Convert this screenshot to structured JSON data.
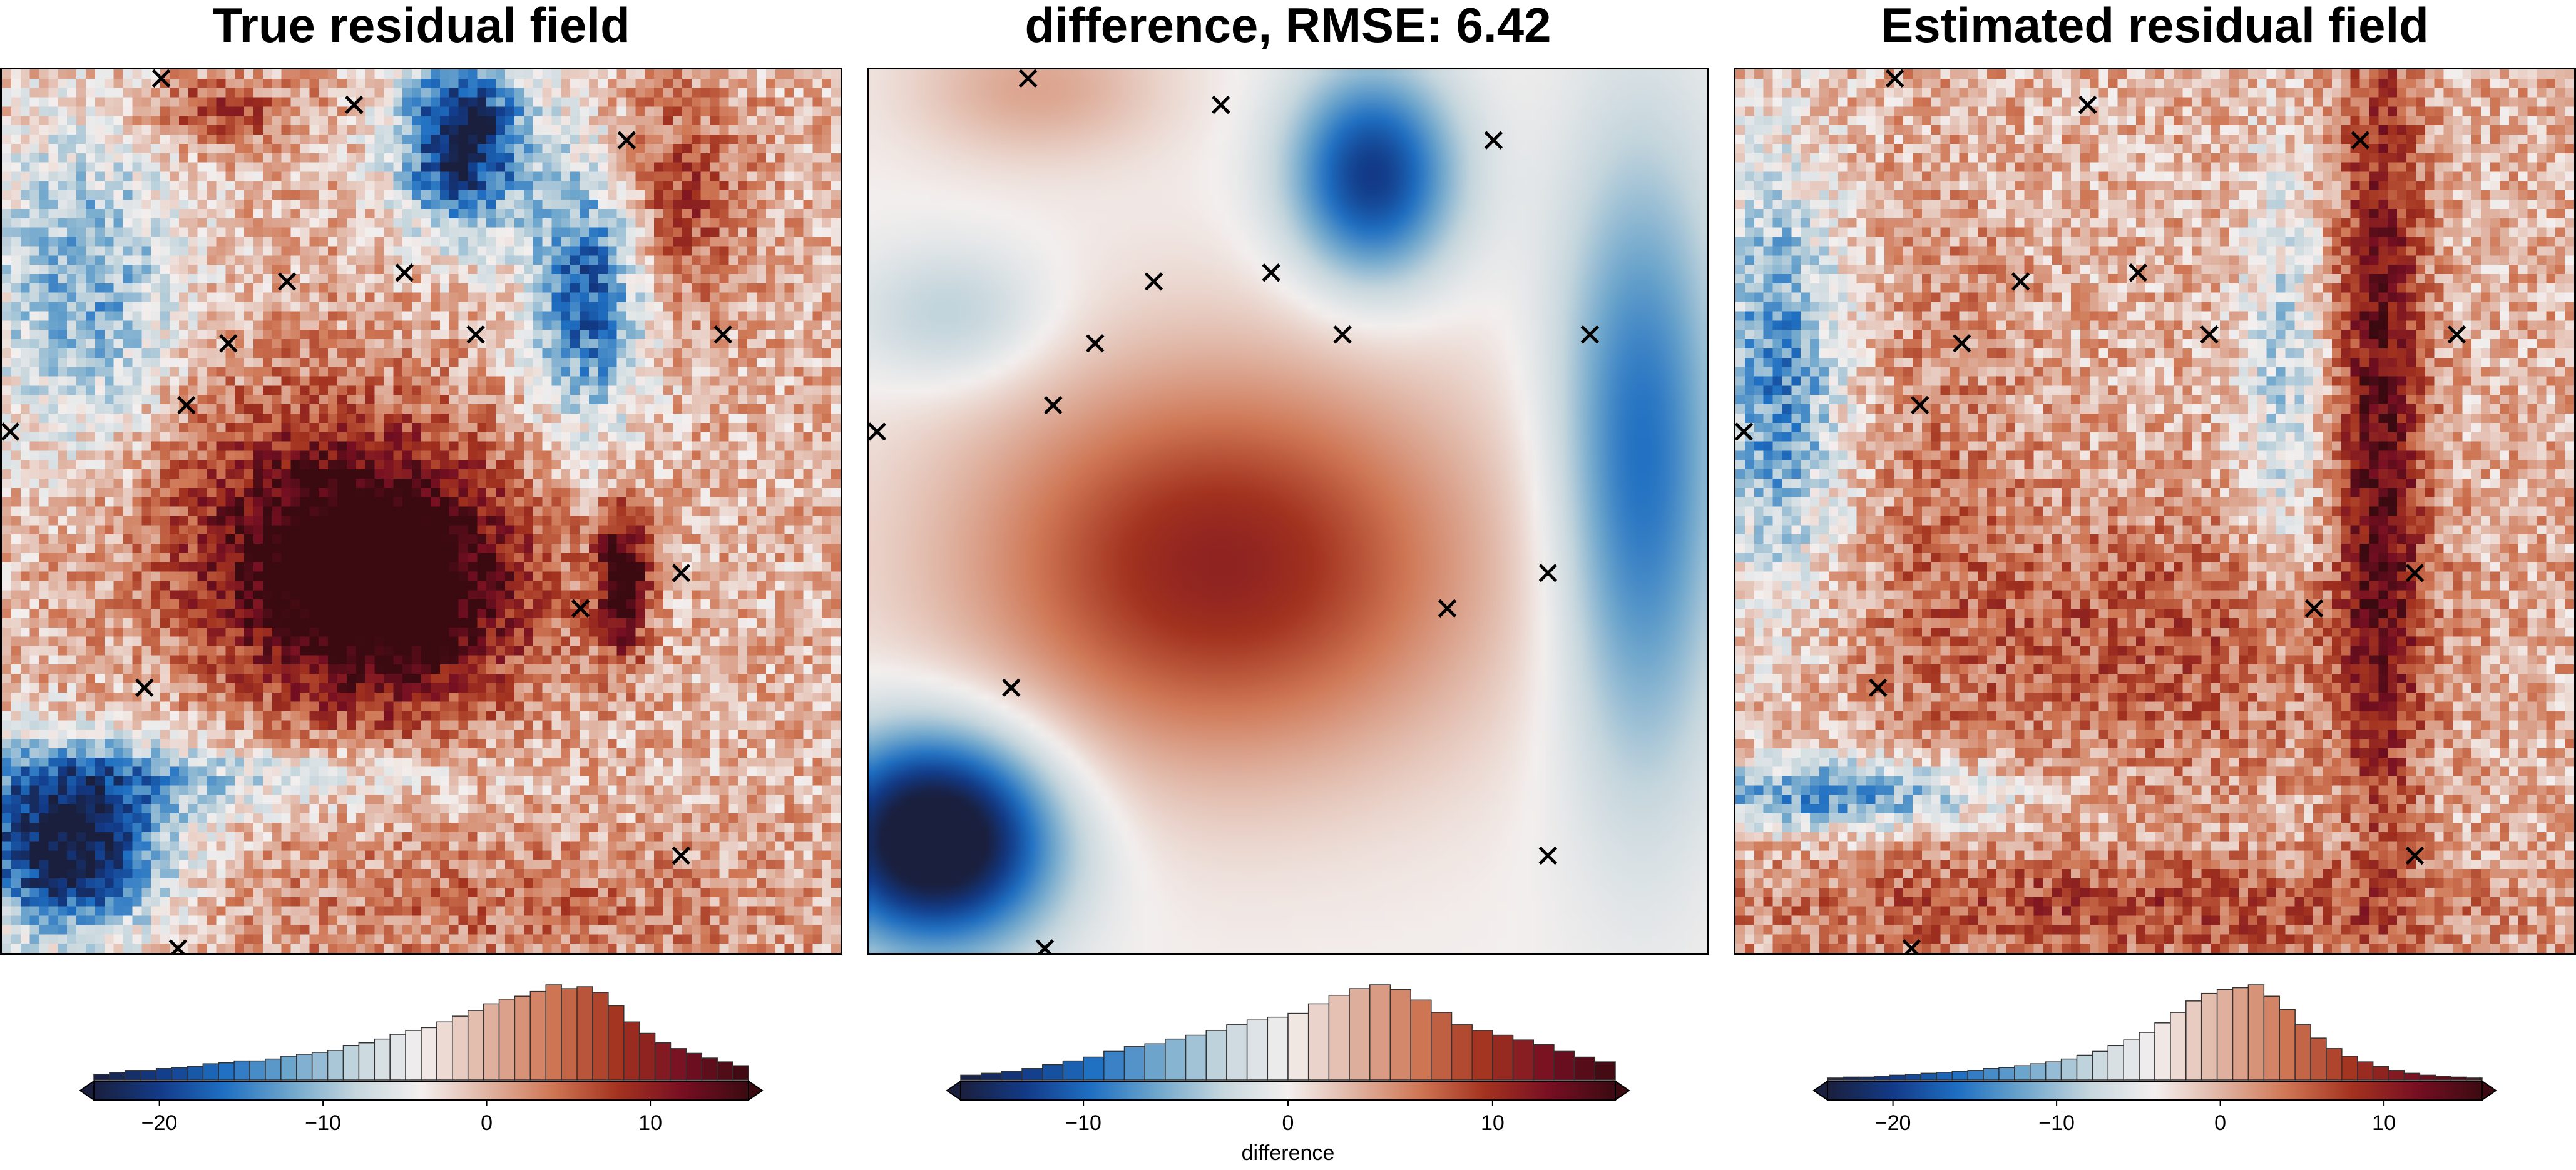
{
  "titles": {
    "left": "True residual field",
    "middle": "difference, RMSE: 6.42",
    "right": "Estimated residual field"
  },
  "colormap": [
    "#1a1f3d",
    "#123a87",
    "#1f6fc2",
    "#6ea6cc",
    "#c5d6dd",
    "#f3efee",
    "#e0b4a3",
    "#cf7755",
    "#a3331f",
    "#760f22",
    "#3b0a11"
  ],
  "chart_data": [
    {
      "type": "heatmap",
      "title": "True residual field",
      "colorbar": {
        "range": [
          -24,
          16
        ],
        "ticks": [
          -20,
          -10,
          0,
          10
        ],
        "label": ""
      },
      "histogram_counts": [
        0.06,
        0.08,
        0.1,
        0.1,
        0.12,
        0.13,
        0.14,
        0.17,
        0.18,
        0.2,
        0.2,
        0.22,
        0.25,
        0.27,
        0.29,
        0.31,
        0.36,
        0.39,
        0.43,
        0.48,
        0.52,
        0.55,
        0.61,
        0.67,
        0.73,
        0.8,
        0.85,
        0.88,
        0.93,
        1.0,
        0.96,
        0.98,
        0.92,
        0.78,
        0.61,
        0.49,
        0.39,
        0.33,
        0.28,
        0.23,
        0.19,
        0.15
      ],
      "markers": [
        {
          "x": 19.0,
          "y": 99.0
        },
        {
          "x": 42.0,
          "y": 96.0
        },
        {
          "x": 74.5,
          "y": 92.0
        },
        {
          "x": 34.0,
          "y": 76.0
        },
        {
          "x": 48.0,
          "y": 77.0
        },
        {
          "x": 56.5,
          "y": 70.0
        },
        {
          "x": 86.0,
          "y": 70.0
        },
        {
          "x": 27.0,
          "y": 69.0
        },
        {
          "x": 22.0,
          "y": 62.0
        },
        {
          "x": 1.0,
          "y": 59.0
        },
        {
          "x": 81.0,
          "y": 43.0
        },
        {
          "x": 69.0,
          "y": 39.0
        },
        {
          "x": 17.0,
          "y": 30.0
        },
        {
          "x": 81.0,
          "y": 11.0
        },
        {
          "x": 21.0,
          "y": 0.5
        }
      ]
    },
    {
      "type": "heatmap",
      "title": "difference, RMSE: 6.42",
      "colorbar": {
        "range": [
          -16,
          16
        ],
        "ticks": [
          -10,
          0,
          10
        ],
        "label": "difference"
      },
      "histogram_counts": [
        0.05,
        0.07,
        0.09,
        0.12,
        0.16,
        0.2,
        0.24,
        0.3,
        0.35,
        0.38,
        0.43,
        0.47,
        0.52,
        0.58,
        0.63,
        0.66,
        0.7,
        0.8,
        0.89,
        0.96,
        1.0,
        0.95,
        0.84,
        0.71,
        0.58,
        0.52,
        0.47,
        0.42,
        0.37,
        0.3,
        0.24,
        0.19
      ],
      "markers": [
        {
          "x": 19.0,
          "y": 99.0
        },
        {
          "x": 42.0,
          "y": 96.0
        },
        {
          "x": 74.5,
          "y": 92.0
        },
        {
          "x": 34.0,
          "y": 76.0
        },
        {
          "x": 48.0,
          "y": 77.0
        },
        {
          "x": 56.5,
          "y": 70.0
        },
        {
          "x": 86.0,
          "y": 70.0
        },
        {
          "x": 27.0,
          "y": 69.0
        },
        {
          "x": 22.0,
          "y": 62.0
        },
        {
          "x": 1.0,
          "y": 59.0
        },
        {
          "x": 81.0,
          "y": 43.0
        },
        {
          "x": 69.0,
          "y": 39.0
        },
        {
          "x": 17.0,
          "y": 30.0
        },
        {
          "x": 81.0,
          "y": 11.0
        },
        {
          "x": 21.0,
          "y": 0.5
        }
      ]
    },
    {
      "type": "heatmap",
      "title": "Estimated residual field",
      "colorbar": {
        "range": [
          -24,
          16
        ],
        "ticks": [
          -20,
          -10,
          0,
          10
        ],
        "label": ""
      },
      "histogram_counts": [
        0.02,
        0.03,
        0.03,
        0.04,
        0.05,
        0.06,
        0.07,
        0.08,
        0.09,
        0.1,
        0.12,
        0.13,
        0.15,
        0.17,
        0.19,
        0.22,
        0.26,
        0.3,
        0.36,
        0.42,
        0.5,
        0.6,
        0.71,
        0.83,
        0.91,
        0.95,
        0.97,
        1.0,
        0.88,
        0.74,
        0.58,
        0.44,
        0.33,
        0.25,
        0.19,
        0.14,
        0.1,
        0.07,
        0.05,
        0.04,
        0.03,
        0.02
      ],
      "markers": [
        {
          "x": 19.0,
          "y": 99.0
        },
        {
          "x": 42.0,
          "y": 96.0
        },
        {
          "x": 74.5,
          "y": 92.0
        },
        {
          "x": 34.0,
          "y": 76.0
        },
        {
          "x": 48.0,
          "y": 77.0
        },
        {
          "x": 56.5,
          "y": 70.0
        },
        {
          "x": 86.0,
          "y": 70.0
        },
        {
          "x": 27.0,
          "y": 69.0
        },
        {
          "x": 22.0,
          "y": 62.0
        },
        {
          "x": 1.0,
          "y": 59.0
        },
        {
          "x": 81.0,
          "y": 43.0
        },
        {
          "x": 69.0,
          "y": 39.0
        },
        {
          "x": 17.0,
          "y": 30.0
        },
        {
          "x": 81.0,
          "y": 11.0
        },
        {
          "x": 21.0,
          "y": 0.5
        }
      ]
    }
  ]
}
